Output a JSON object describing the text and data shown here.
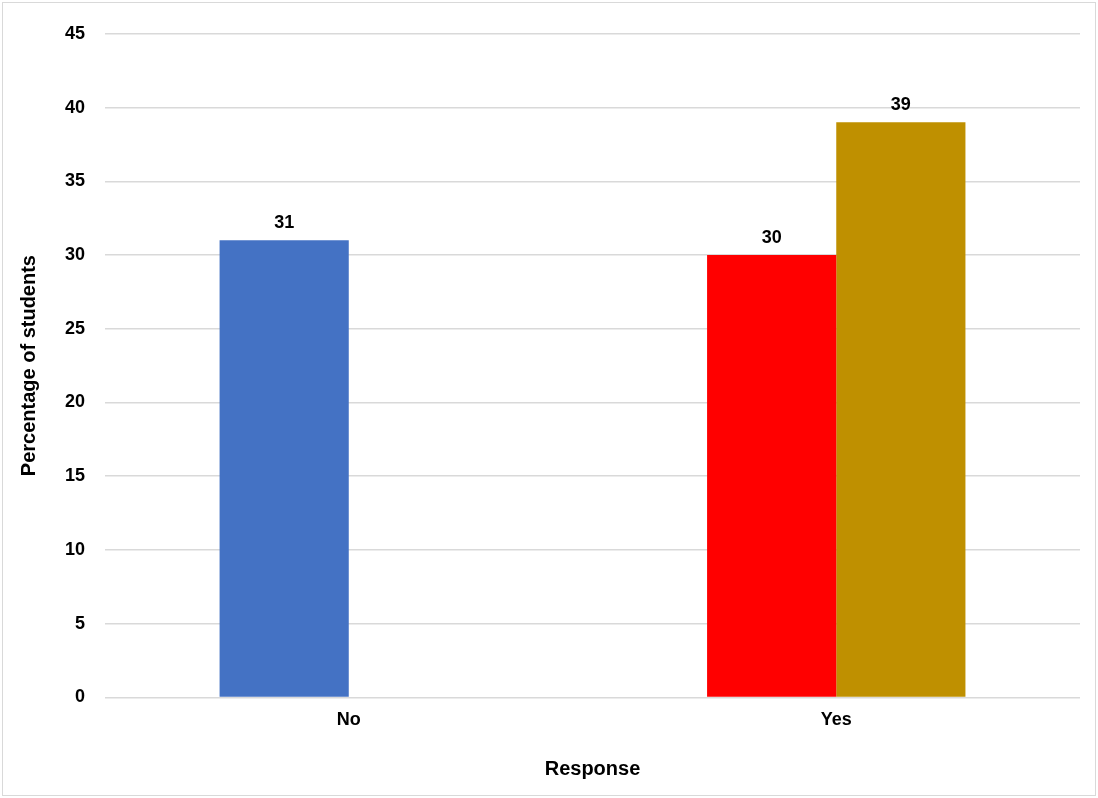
{
  "chart_data": {
    "type": "bar",
    "xlabel": "Response",
    "ylabel": "Percentage of students",
    "categories": [
      "No",
      "Yes"
    ],
    "series": [
      {
        "colors": [
          "#4472c4",
          "#ff0000"
        ],
        "values": [
          31,
          30
        ]
      },
      {
        "color": "#bf9000",
        "values": [
          null,
          39
        ]
      }
    ],
    "ylim": [
      0,
      45
    ],
    "yticks": [
      0,
      5,
      10,
      15,
      20,
      25,
      30,
      35,
      40,
      45
    ],
    "grid": "y",
    "legend": false,
    "data_labels": true
  }
}
